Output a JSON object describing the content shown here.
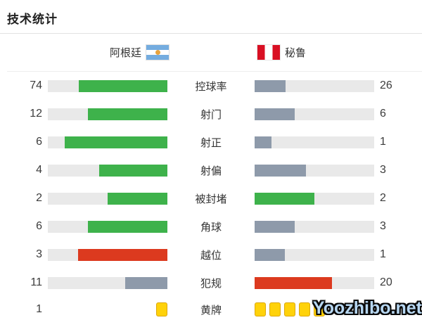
{
  "title": "技术统计",
  "teams": {
    "home": {
      "name": "阿根廷",
      "flag": "argentina-flag"
    },
    "away": {
      "name": "秘鲁",
      "flag": "peru-flag"
    }
  },
  "colors": {
    "green": "#3eb24b",
    "red": "#dc3a1f",
    "slate": "#8e9aaa",
    "track": "#e9e9e9",
    "card_yellow": "#ffd20a",
    "card_border": "#dca70c",
    "argentina_blue": "#74acdf",
    "peru_red": "#d91023"
  },
  "chart_data": {
    "type": "bar",
    "title": "技术统计",
    "layout": "mirrored horizontal bars, center category labels, home bars fill right-to-left, away bars fill left-to-right",
    "note": "fill fraction = value / (home + away); 黄牌 row rendered as yellow card squares; away yellow-card value 5 partially hidden by watermark",
    "categories": [
      "控球率",
      "射门",
      "射正",
      "射偏",
      "被封堵",
      "角球",
      "越位",
      "犯规",
      "黄牌"
    ],
    "series": [
      {
        "name": "阿根廷",
        "values": [
          74,
          12,
          6,
          4,
          2,
          6,
          3,
          11,
          1
        ]
      },
      {
        "name": "秘鲁",
        "values": [
          26,
          6,
          1,
          3,
          2,
          3,
          1,
          20,
          5
        ]
      }
    ],
    "row_styles": [
      {
        "home": "green",
        "away": "slate"
      },
      {
        "home": "green",
        "away": "slate"
      },
      {
        "home": "green",
        "away": "slate"
      },
      {
        "home": "green",
        "away": "slate"
      },
      {
        "home": "green",
        "away": "green"
      },
      {
        "home": "green",
        "away": "slate"
      },
      {
        "home": "red",
        "away": "slate"
      },
      {
        "home": "slate",
        "away": "red"
      },
      {
        "type": "cards"
      }
    ]
  },
  "watermark": "Yoozhibo.net"
}
